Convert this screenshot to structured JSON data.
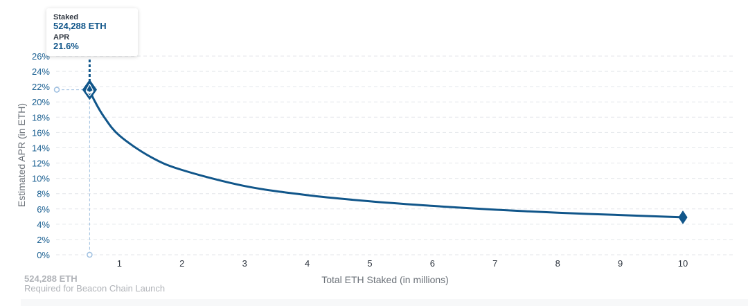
{
  "chart_data": {
    "type": "line",
    "xlabel": "Total ETH Staked  (in millions)",
    "ylabel": "Estimated APR (in ETH)",
    "xlim": [
      0,
      11.5
    ],
    "ylim": [
      0,
      26
    ],
    "x_ticks": [
      1,
      2,
      3,
      4,
      5,
      6,
      7,
      8,
      9,
      10
    ],
    "y_ticks": [
      0,
      2,
      4,
      6,
      8,
      10,
      12,
      14,
      16,
      18,
      20,
      22,
      24,
      26
    ],
    "y_tick_labels": [
      "0%",
      "2%",
      "4%",
      "6%",
      "8%",
      "10%",
      "12%",
      "14%",
      "16%",
      "18%",
      "20%",
      "22%",
      "24%",
      "26%"
    ],
    "grid": "horizontal",
    "series": [
      {
        "x": [
          0.524288,
          0.6,
          0.75,
          1,
          1.5,
          2,
          3,
          4,
          5,
          6,
          7,
          8,
          9,
          10
        ],
        "y": [
          21.6,
          20.2,
          18.1,
          15.6,
          12.8,
          11.1,
          9.0,
          7.8,
          7.0,
          6.4,
          5.9,
          5.5,
          5.2,
          4.9
        ]
      }
    ],
    "highlight": {
      "x": 0.524288,
      "y": 21.6
    },
    "end_marker": {
      "x": 10,
      "y": 4.9
    },
    "colors": {
      "line": "#11568a",
      "grid": "#e3e6ea",
      "guide": "#9ebfe0",
      "tick_y": "#1a5f91",
      "tick_x": "#2f3640",
      "axis_label": "#6b7178"
    }
  },
  "tooltip": {
    "staked_label": "Staked",
    "staked_value": "524,288 ETH",
    "apr_label": "APR",
    "apr_value": "21.6%"
  },
  "annotation": {
    "title": "524,288 ETH",
    "subtitle": "Required for Beacon Chain Launch"
  }
}
